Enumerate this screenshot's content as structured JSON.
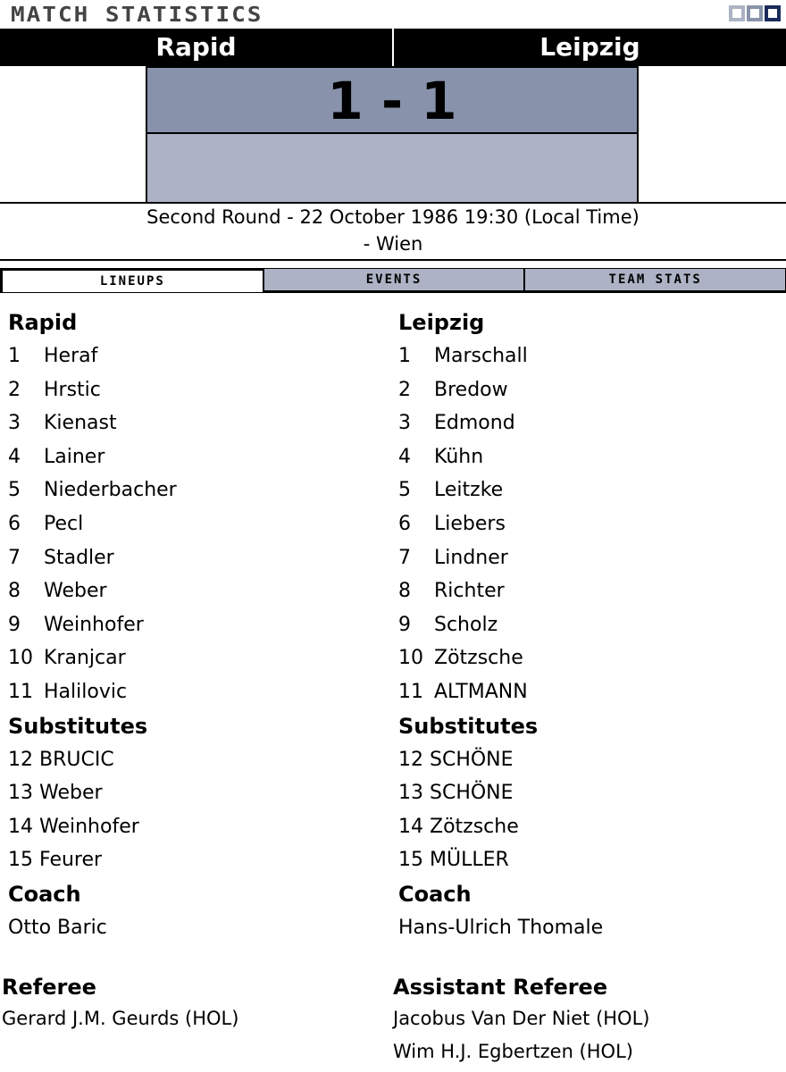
{
  "header": {
    "title": "MATCH STATISTICS",
    "window_button_colors": [
      "#adb3c5",
      "#8893ab",
      "#1a2a5a"
    ]
  },
  "match": {
    "home": "Rapid",
    "away": "Leipzig",
    "score": "1 - 1",
    "info_line1": "Second Round - 22 October 1986 19:30 (Local Time)",
    "info_line2": "- Wien"
  },
  "tabs": [
    {
      "label": "LINEUPS",
      "active": true
    },
    {
      "label": "EVENTS",
      "active": false
    },
    {
      "label": "TEAM STATS",
      "active": false
    }
  ],
  "home": {
    "team": "Rapid",
    "lineup": [
      [
        "1",
        "Heraf"
      ],
      [
        "2",
        "Hrstic"
      ],
      [
        "3",
        "Kienast"
      ],
      [
        "4",
        "Lainer"
      ],
      [
        "5",
        "Niederbacher"
      ],
      [
        "6",
        "Pecl"
      ],
      [
        "7",
        "Stadler"
      ],
      [
        "8",
        "Weber"
      ],
      [
        "9",
        "Weinhofer"
      ],
      [
        "10",
        "Kranjcar"
      ],
      [
        "11",
        "Halilovic"
      ]
    ],
    "subs_label": "Substitutes",
    "subs": [
      [
        "12",
        "BRUCIC"
      ],
      [
        "13",
        "Weber"
      ],
      [
        "14",
        "Weinhofer"
      ],
      [
        "15",
        "Feurer"
      ]
    ],
    "coach_label": "Coach",
    "coach": "Otto Baric"
  },
  "away": {
    "team": "Leipzig",
    "lineup": [
      [
        "1",
        "Marschall"
      ],
      [
        "2",
        "Bredow"
      ],
      [
        "3",
        "Edmond"
      ],
      [
        "4",
        "Kühn"
      ],
      [
        "5",
        "Leitzke"
      ],
      [
        "6",
        "Liebers"
      ],
      [
        "7",
        "Lindner"
      ],
      [
        "8",
        "Richter"
      ],
      [
        "9",
        "Scholz"
      ],
      [
        "10",
        "Zötzsche"
      ],
      [
        "11",
        "ALTMANN"
      ]
    ],
    "subs_label": "Substitutes",
    "subs": [
      [
        "12",
        "SCHÖNE"
      ],
      [
        "13",
        "SCHÖNE"
      ],
      [
        "14",
        "Zötzsche"
      ],
      [
        "15",
        "MÜLLER"
      ]
    ],
    "coach_label": "Coach",
    "coach": "Hans-Ulrich Thomale"
  },
  "officials": {
    "referee_label": "Referee",
    "referee": "Gerard J.M. Geurds (HOL)",
    "assistant_label": "Assistant Referee",
    "assistants": [
      "Jacobus Van Der Niet (HOL)",
      "Wim H.J. Egbertzen (HOL)"
    ]
  }
}
